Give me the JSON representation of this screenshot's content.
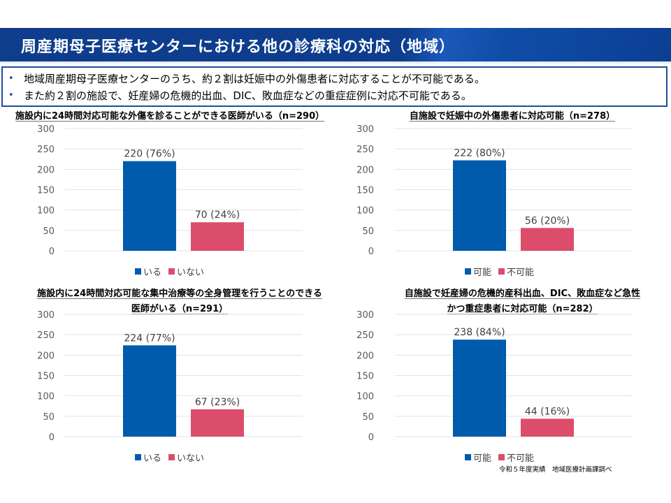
{
  "header": {
    "title": "周産期母子医療センターにおける他の診療科の対応（地域）"
  },
  "summary": {
    "bullet_icon": "bullet-dot",
    "items": [
      "地域周産期母子医療センターのうち、約２割は妊娠中の外傷患者に対応することが不可能である。",
      "また約２割の施設で、妊産婦の危機的出血、DIC、敗血症などの重症症例に対応不可能である。"
    ]
  },
  "colors": {
    "series1": "#005BAC",
    "series2": "#DC4D6B",
    "grid": "#E3E3E3",
    "header": "#0B3A8A",
    "summary_border": "#1F4E9C"
  },
  "chart_data": [
    {
      "type": "bar",
      "title_lines": [
        "施設内に24時間対応可能な外傷を診ることができる医師がいる（n=290）"
      ],
      "categories": [
        "いる",
        "いない"
      ],
      "values": [
        220,
        70
      ],
      "data_labels": [
        "220 (76%)",
        "70 (24%)"
      ],
      "legend": [
        "いる",
        "いない"
      ],
      "yticks": [
        "0",
        "50",
        "100",
        "150",
        "200",
        "250",
        "300"
      ],
      "ylim": [
        0,
        300
      ],
      "grid": true,
      "legend_position": "bottom"
    },
    {
      "type": "bar",
      "title_lines": [
        "自施設で妊娠中の外傷患者に対応可能（n=278）"
      ],
      "categories": [
        "可能",
        "不可能"
      ],
      "values": [
        222,
        56
      ],
      "data_labels": [
        "222 (80%)",
        "56 (20%)"
      ],
      "legend": [
        "可能",
        "不可能"
      ],
      "yticks": [
        "0",
        "50",
        "100",
        "150",
        "200",
        "250",
        "300"
      ],
      "ylim": [
        0,
        300
      ],
      "grid": true,
      "legend_position": "bottom"
    },
    {
      "type": "bar",
      "title_lines": [
        "施設内に24時間対応可能な集中治療等の全身管理を行うことのできる",
        "医師がいる（n=291）"
      ],
      "categories": [
        "いる",
        "いない"
      ],
      "values": [
        224,
        67
      ],
      "data_labels": [
        "224 (77%)",
        "67 (23%)"
      ],
      "legend": [
        "いる",
        "いない"
      ],
      "yticks": [
        "0",
        "50",
        "100",
        "150",
        "200",
        "250",
        "300"
      ],
      "ylim": [
        0,
        300
      ],
      "grid": true,
      "legend_position": "bottom"
    },
    {
      "type": "bar",
      "title_lines": [
        "自施設で妊産婦の危機的産科出血、DIC、敗血症など急性",
        "かつ重症患者に対応可能（n=282）"
      ],
      "categories": [
        "可能",
        "不可能"
      ],
      "values": [
        238,
        44
      ],
      "data_labels": [
        "238 (84%)",
        "44 (16%)"
      ],
      "legend": [
        "可能",
        "不可能"
      ],
      "yticks": [
        "0",
        "50",
        "100",
        "150",
        "200",
        "250",
        "300"
      ],
      "ylim": [
        0,
        300
      ],
      "grid": true,
      "legend_position": "bottom"
    }
  ],
  "footnote": "令和５年度実績　地域医療計画課調べ"
}
